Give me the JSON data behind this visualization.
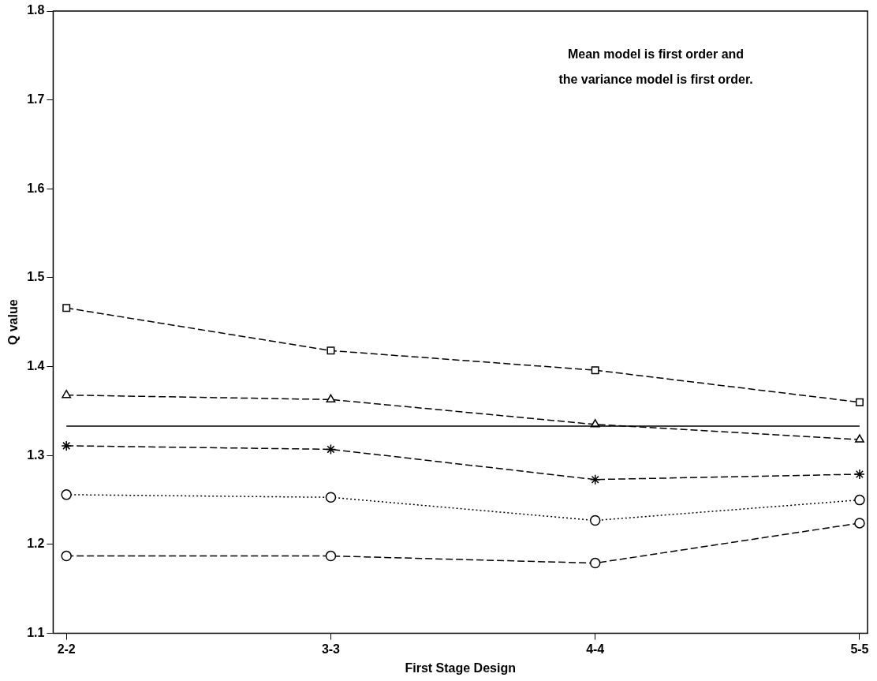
{
  "chart_data": {
    "type": "line",
    "xlabel": "First Stage Design",
    "ylabel": "Q value",
    "categories": [
      "2-2",
      "3-3",
      "4-4",
      "5-5"
    ],
    "series": [
      {
        "color": "#000000",
        "values": [
          1.466,
          1.418,
          1.396,
          1.36
        ],
        "marker": "square",
        "line_style": "dashed"
      },
      {
        "color": "#000000",
        "values": [
          1.368,
          1.363,
          1.335,
          1.318
        ],
        "marker": "triangle",
        "line_style": "dashed"
      },
      {
        "color": "#000000",
        "values": [
          1.311,
          1.307,
          1.273,
          1.279
        ],
        "marker": "cross",
        "line_style": "dashed"
      },
      {
        "color": "#000000",
        "values": [
          1.256,
          1.253,
          1.227,
          1.25
        ],
        "marker": "circle",
        "line_style": "dotted"
      },
      {
        "color": "#000000",
        "values": [
          1.187,
          1.187,
          1.179,
          1.224
        ],
        "marker": "circle",
        "line_style": "dashed"
      }
    ],
    "ylim": [
      1.1,
      1.8
    ],
    "yticks": [
      1.1,
      1.2,
      1.3,
      1.4,
      1.5,
      1.6,
      1.7,
      1.8
    ],
    "grid": false,
    "legend": false,
    "ref_lines": [
      {
        "axis": "y",
        "value": 1.333,
        "color": "#000000",
        "line_style": "solid"
      }
    ],
    "annotations": [
      "Mean model is first order and",
      "the variance model is first order."
    ]
  }
}
